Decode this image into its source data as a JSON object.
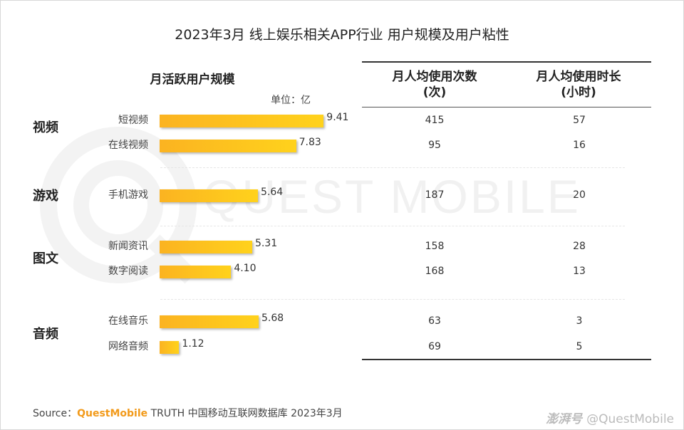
{
  "title": "2023年3月 线上娱乐相关APP行业 用户规模及用户粘性",
  "watermark": "QUEST MOBILE",
  "colors": {
    "bar_start": "#fbb321",
    "bar_end": "#ffd21c",
    "accent": "#f29a1a"
  },
  "chart_data": {
    "type": "bar",
    "orientation": "horizontal",
    "title": "月活跃用户规模",
    "unit": "单位：亿",
    "groups": [
      {
        "category": "视频",
        "apps": [
          {
            "name": "短视频",
            "value": "9.41",
            "times": "415",
            "hours": "57"
          },
          {
            "name": "在线视频",
            "value": "7.83",
            "times": "95",
            "hours": "16"
          }
        ]
      },
      {
        "category": "游戏",
        "apps": [
          {
            "name": "手机游戏",
            "value": "5.64",
            "times": "187",
            "hours": "20"
          }
        ]
      },
      {
        "category": "图文",
        "apps": [
          {
            "name": "新闻资讯",
            "value": "5.31",
            "times": "158",
            "hours": "28"
          },
          {
            "name": "数字阅读",
            "value": "4.10",
            "times": "168",
            "hours": "13"
          }
        ]
      },
      {
        "category": "音频",
        "apps": [
          {
            "name": "在线音乐",
            "value": "5.68",
            "times": "63",
            "hours": "3"
          },
          {
            "name": "网络音频",
            "value": "1.12",
            "times": "69",
            "hours": "5"
          }
        ]
      }
    ],
    "table_headers": [
      "月人均使用次数\n(次)",
      "月人均使用时长\n(小时)"
    ]
  },
  "source": {
    "label": "Source：",
    "brand": "QuestMobile",
    "rest": " TRUTH 中国移动互联网数据库 2023年3月"
  },
  "credit": {
    "mark": "澎湃号",
    "handle": "@QuestMobile"
  }
}
